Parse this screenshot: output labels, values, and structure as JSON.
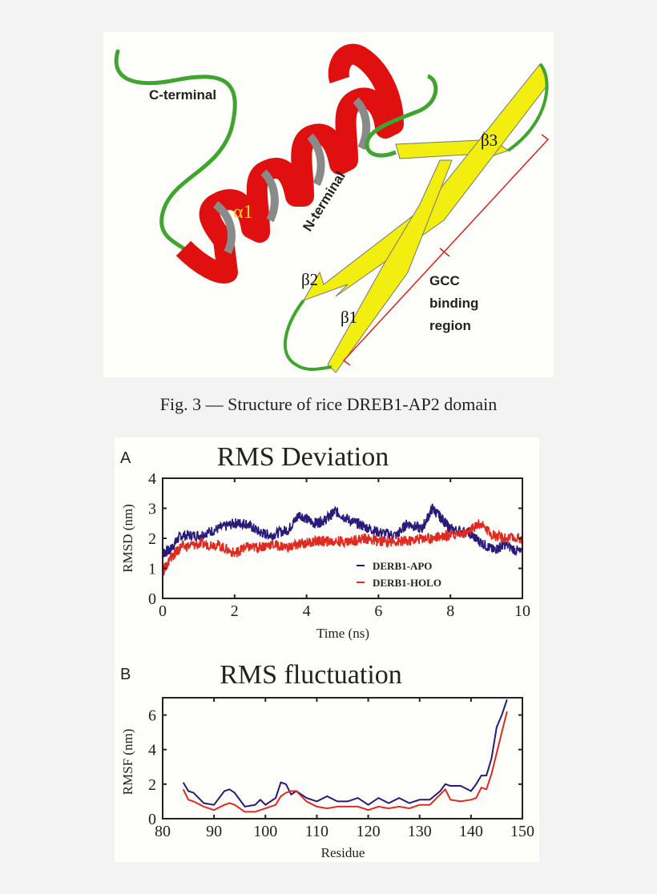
{
  "figure3": {
    "caption": "Fig. 3 — Structure of rice DREB1-AP2 domain",
    "labels": {
      "c_terminal": "C-terminal",
      "n_terminal": "N-terminal",
      "alpha1": "α1",
      "beta1": "β1",
      "beta2": "β2",
      "beta3": "β3",
      "gcc_line1": "GCC",
      "gcc_line2": "binding",
      "gcc_line3": "region"
    },
    "colors": {
      "helix": "#e01010",
      "sheet": "#f2ee10",
      "loop": "#3fa52f",
      "bracket": "#e02020",
      "alpha_label": "#f5e020"
    }
  },
  "panel_a": {
    "letter": "A",
    "title": "RMS Deviation",
    "xlabel": "Time (ns)",
    "ylabel": "RMSD (nm)",
    "xticks": [
      "0",
      "2",
      "4",
      "6",
      "8",
      "10"
    ],
    "yticks": [
      "0",
      "1",
      "2",
      "3",
      "4"
    ],
    "legend": [
      {
        "label": "DERB1-APO",
        "color": "#2a1a7a"
      },
      {
        "label": "DERB1-HOLO",
        "color": "#e02a20"
      }
    ]
  },
  "panel_b": {
    "letter": "B",
    "title": "RMS fluctuation",
    "xlabel": "Residue",
    "ylabel": "RMSF (nm)",
    "xticks": [
      "80",
      "90",
      "100",
      "110",
      "120",
      "130",
      "140",
      "150"
    ],
    "yticks": [
      "0",
      "2",
      "4",
      "6"
    ]
  },
  "chart_data": [
    {
      "type": "line",
      "title": "RMS Deviation",
      "xlabel": "Time (ns)",
      "ylabel": "RMSD (nm)",
      "xlim": [
        0,
        10
      ],
      "ylim": [
        0,
        4
      ],
      "grid": false,
      "legend_position": "lower right",
      "x": [
        0,
        0.2,
        0.5,
        1.0,
        1.5,
        2.0,
        2.3,
        2.7,
        3.0,
        3.5,
        3.8,
        4.2,
        4.5,
        4.8,
        5.2,
        5.6,
        6.0,
        6.5,
        6.8,
        7.2,
        7.5,
        7.8,
        8.0,
        8.5,
        8.8,
        9.2,
        9.5,
        10.0
      ],
      "series": [
        {
          "name": "DERB1-APO",
          "color": "#2a1a7a",
          "values": [
            1.5,
            1.6,
            2.1,
            2.1,
            2.3,
            2.5,
            2.5,
            2.2,
            2.1,
            2.3,
            2.8,
            2.5,
            2.6,
            2.9,
            2.6,
            2.4,
            2.2,
            2.1,
            2.5,
            2.3,
            3.0,
            2.6,
            2.3,
            2.2,
            1.9,
            1.6,
            1.8,
            1.5
          ]
        },
        {
          "name": "DERB1-HOLO",
          "color": "#e02a20",
          "values": [
            0.9,
            1.3,
            1.7,
            1.8,
            1.8,
            1.5,
            1.7,
            1.7,
            1.8,
            1.7,
            1.8,
            1.9,
            1.9,
            1.9,
            1.9,
            2.0,
            1.9,
            1.9,
            1.9,
            2.0,
            2.0,
            2.1,
            2.1,
            2.2,
            2.5,
            2.1,
            2.0,
            2.0
          ]
        }
      ]
    },
    {
      "type": "line",
      "title": "RMS fluctuation",
      "xlabel": "Residue",
      "ylabel": "RMSF (nm)",
      "xlim": [
        80,
        150
      ],
      "ylim": [
        0,
        7
      ],
      "grid": false,
      "x": [
        84,
        85,
        86,
        88,
        90,
        92,
        93,
        94,
        96,
        98,
        99,
        100,
        102,
        103,
        104,
        105,
        106,
        108,
        110,
        112,
        114,
        116,
        118,
        120,
        122,
        124,
        126,
        128,
        130,
        132,
        134,
        135,
        136,
        138,
        140,
        141,
        142,
        143,
        144,
        145,
        146,
        147
      ],
      "series": [
        {
          "name": "DERB1-APO",
          "color": "#2a1a7a",
          "values": [
            2.1,
            1.6,
            1.5,
            0.9,
            0.8,
            1.6,
            1.7,
            1.5,
            0.7,
            0.8,
            1.1,
            0.8,
            1.2,
            2.1,
            2.0,
            1.4,
            1.6,
            1.2,
            1.0,
            1.3,
            1.0,
            1.0,
            1.2,
            0.8,
            1.2,
            0.9,
            1.2,
            0.9,
            1.1,
            1.1,
            1.6,
            2.0,
            1.9,
            1.9,
            1.6,
            2.0,
            2.5,
            2.5,
            3.5,
            5.3,
            6.0,
            6.9
          ]
        },
        {
          "name": "DERB1-HOLO",
          "color": "#e02a20",
          "values": [
            1.7,
            1.1,
            1.0,
            0.7,
            0.5,
            0.8,
            0.9,
            0.8,
            0.4,
            0.4,
            0.5,
            0.6,
            0.8,
            1.3,
            1.5,
            1.6,
            1.6,
            1.0,
            0.7,
            0.6,
            0.7,
            0.7,
            0.7,
            0.5,
            0.7,
            0.6,
            0.7,
            0.6,
            0.8,
            0.8,
            1.4,
            1.7,
            1.1,
            1.0,
            1.1,
            1.2,
            1.8,
            1.7,
            2.6,
            3.8,
            5.0,
            6.2
          ]
        }
      ]
    }
  ]
}
